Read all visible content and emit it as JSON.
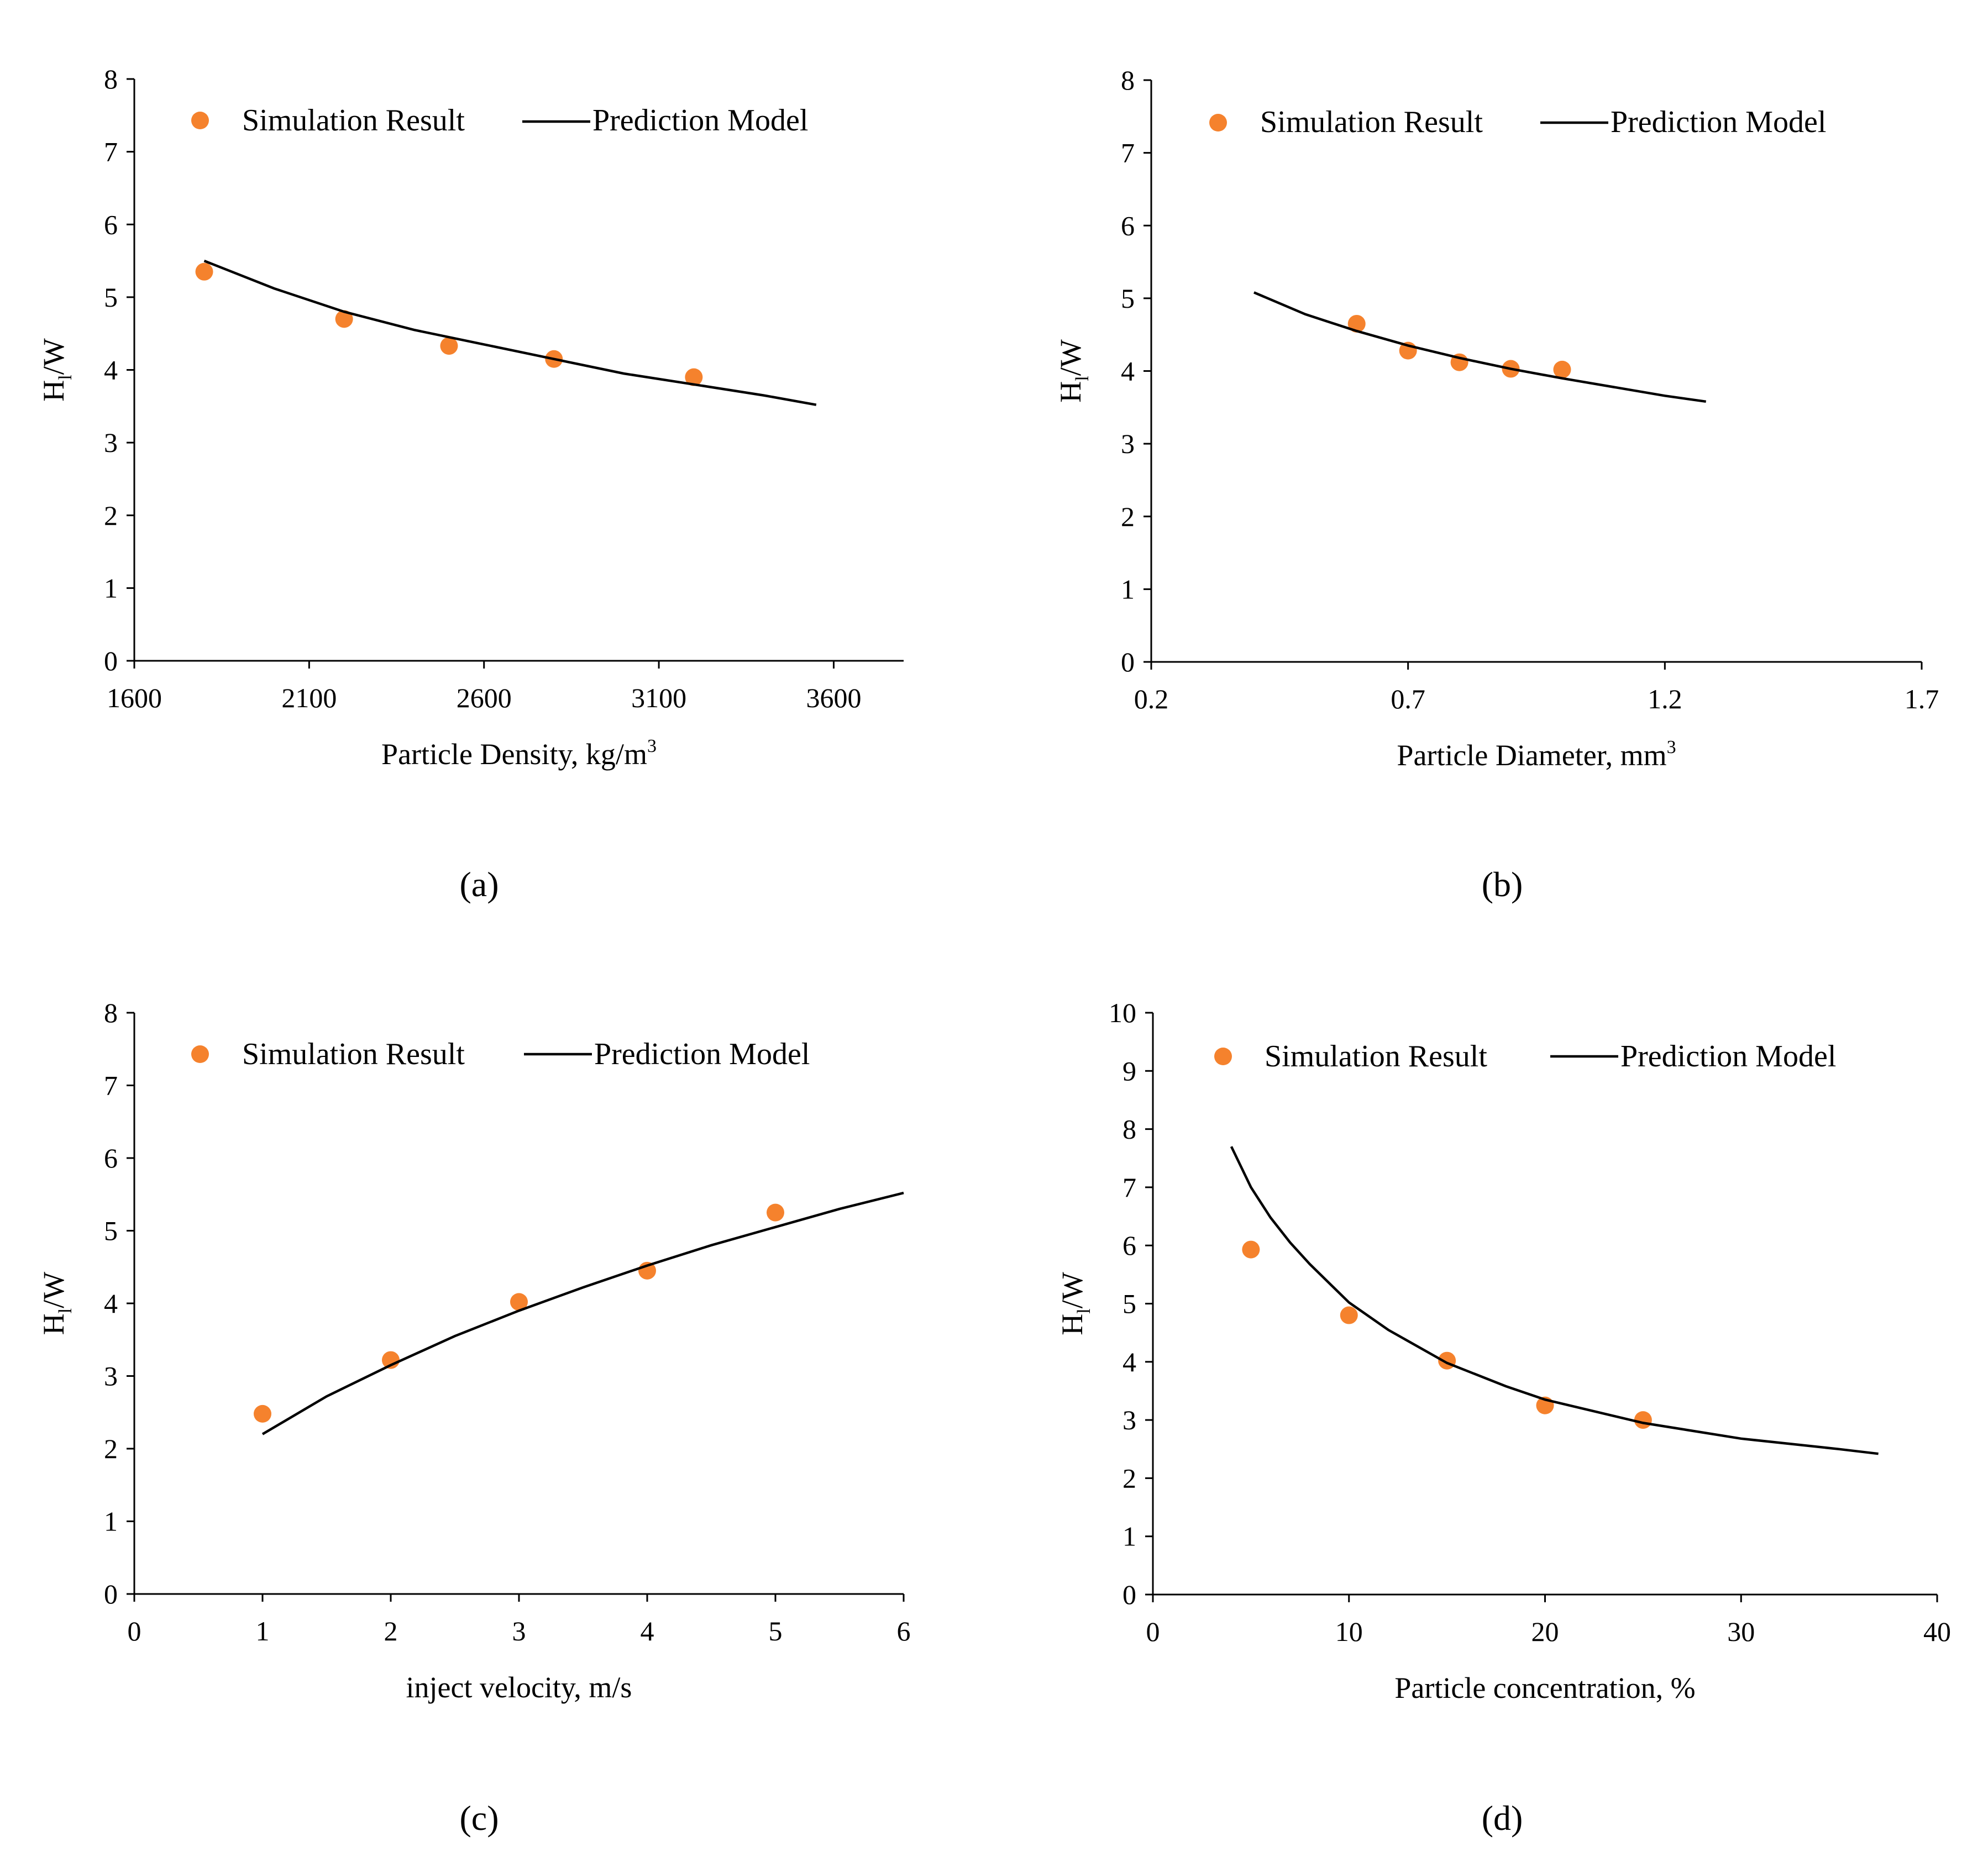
{
  "colors": {
    "simulation": "#f5822d",
    "model": "#000000"
  },
  "legend": {
    "simulation_label": "Simulation Result",
    "model_label": "Prediction Model"
  },
  "chart_data": [
    {
      "type": "scatter",
      "panel": "(a)",
      "xlabel": "Particle Density,   kg/m",
      "xlabel_sup": "3",
      "ylabel": "H",
      "ylabel_sub": "l",
      "ylabel_rest": "/W",
      "xlim": [
        1600,
        3800
      ],
      "ylim": [
        0,
        8
      ],
      "xticks": [
        1600,
        2100,
        2600,
        3100,
        3600
      ],
      "yticks": [
        0,
        1,
        2,
        3,
        4,
        5,
        6,
        7,
        8
      ],
      "series": [
        {
          "name": "Simulation Result",
          "kind": "points",
          "x": [
            1800,
            2200,
            2500,
            2800,
            3200
          ],
          "y": [
            5.35,
            4.7,
            4.33,
            4.15,
            3.9
          ]
        },
        {
          "name": "Prediction Model",
          "kind": "line",
          "x": [
            1800,
            2000,
            2200,
            2400,
            2600,
            2800,
            3000,
            3200,
            3400,
            3550
          ],
          "y": [
            5.5,
            5.12,
            4.8,
            4.55,
            4.35,
            4.15,
            3.95,
            3.8,
            3.65,
            3.52
          ]
        }
      ]
    },
    {
      "type": "scatter",
      "panel": "(b)",
      "xlabel": "Particle Diameter,   mm",
      "xlabel_sup": "3",
      "ylabel": "H",
      "ylabel_sub": "l",
      "ylabel_rest": "/W",
      "xlim": [
        0.2,
        1.7
      ],
      "ylim": [
        0,
        8
      ],
      "xticks": [
        0.2,
        0.7,
        1.2,
        1.7
      ],
      "yticks": [
        0,
        1,
        2,
        3,
        4,
        5,
        6,
        7,
        8
      ],
      "series": [
        {
          "name": "Simulation Result",
          "kind": "points",
          "x": [
            0.6,
            0.7,
            0.8,
            0.9,
            1.0
          ],
          "y": [
            4.65,
            4.28,
            4.12,
            4.03,
            4.02
          ]
        },
        {
          "name": "Prediction Model",
          "kind": "line",
          "x": [
            0.4,
            0.5,
            0.6,
            0.7,
            0.8,
            0.9,
            1.0,
            1.1,
            1.2,
            1.28
          ],
          "y": [
            5.08,
            4.78,
            4.55,
            4.35,
            4.18,
            4.03,
            3.9,
            3.78,
            3.66,
            3.58
          ]
        }
      ]
    },
    {
      "type": "scatter",
      "panel": "(c)",
      "xlabel": "inject velocity,   m/s",
      "xlabel_sup": "",
      "ylabel": "H",
      "ylabel_sub": "l",
      "ylabel_rest": "/W",
      "xlim": [
        0,
        6
      ],
      "ylim": [
        0,
        8
      ],
      "xticks": [
        0,
        1,
        2,
        3,
        4,
        5,
        6
      ],
      "yticks": [
        0,
        1,
        2,
        3,
        4,
        5,
        6,
        7,
        8
      ],
      "series": [
        {
          "name": "Simulation Result",
          "kind": "points",
          "x": [
            1,
            2,
            3,
            4,
            5
          ],
          "y": [
            2.48,
            3.22,
            4.02,
            4.45,
            5.25
          ]
        },
        {
          "name": "Prediction Model",
          "kind": "line",
          "x": [
            1,
            1.5,
            2,
            2.5,
            3,
            3.5,
            4,
            4.5,
            5,
            5.5,
            6
          ],
          "y": [
            2.2,
            2.72,
            3.15,
            3.55,
            3.9,
            4.22,
            4.52,
            4.8,
            5.05,
            5.3,
            5.52
          ]
        }
      ]
    },
    {
      "type": "scatter",
      "panel": "(d)",
      "xlabel": "Particle concentration,   %",
      "xlabel_sup": "",
      "ylabel": "H",
      "ylabel_sub": "l",
      "ylabel_rest": "/W",
      "xlim": [
        0,
        40
      ],
      "ylim": [
        0,
        10
      ],
      "xticks": [
        0,
        10,
        20,
        30,
        40
      ],
      "yticks": [
        0,
        1,
        2,
        3,
        4,
        5,
        6,
        7,
        8,
        9,
        10
      ],
      "series": [
        {
          "name": "Simulation Result",
          "kind": "points",
          "x": [
            5,
            10,
            15,
            20,
            25
          ],
          "y": [
            5.93,
            4.8,
            4.02,
            3.25,
            3.0
          ]
        },
        {
          "name": "Prediction Model",
          "kind": "line",
          "x": [
            4,
            5,
            6,
            7,
            8,
            10,
            12,
            15,
            18,
            20,
            25,
            30,
            35,
            37
          ],
          "y": [
            7.7,
            7.0,
            6.48,
            6.05,
            5.68,
            5.02,
            4.55,
            3.98,
            3.58,
            3.35,
            2.95,
            2.68,
            2.5,
            2.42
          ]
        }
      ]
    }
  ]
}
